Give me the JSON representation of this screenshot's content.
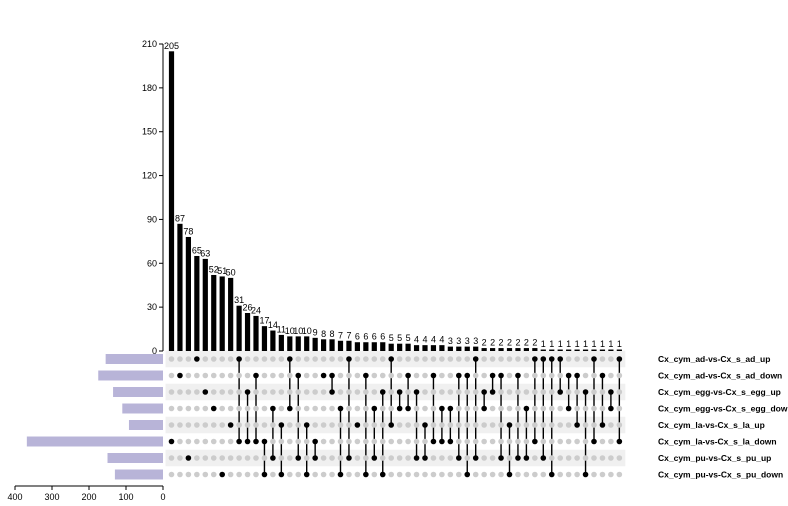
{
  "chart_data": {
    "type": "upset",
    "intersection_axis": {
      "ylim": [
        0,
        210
      ],
      "ticks": [
        0,
        30,
        60,
        90,
        120,
        150,
        180,
        210
      ]
    },
    "set_size_axis": {
      "xlim": [
        0,
        400
      ],
      "ticks": [
        400,
        300,
        200,
        100,
        0
      ],
      "direction": "reversed"
    },
    "sets": [
      "Cx_cym_ad-vs-Cx_s_ad_up",
      "Cx_cym_ad-vs-Cx_s_ad_down",
      "Cx_cym_egg-vs-Cx_s_egg_up",
      "Cx_cym_egg-vs-Cx_s_egg_down",
      "Cx_cym_la-vs-Cx_s_la_up",
      "Cx_cym_la-vs-Cx_s_la_down",
      "Cx_cym_pu-vs-Cx_s_pu_up",
      "Cx_cym_pu-vs-Cx_s_pu_down"
    ],
    "set_sizes": [
      155,
      175,
      135,
      110,
      92,
      368,
      150,
      130
    ],
    "intersections": [
      {
        "size": 205,
        "sets": [
          5
        ]
      },
      {
        "size": 87,
        "sets": [
          1
        ]
      },
      {
        "size": 78,
        "sets": [
          6
        ]
      },
      {
        "size": 65,
        "sets": [
          0
        ]
      },
      {
        "size": 63,
        "sets": [
          2
        ]
      },
      {
        "size": 52,
        "sets": [
          3
        ]
      },
      {
        "size": 51,
        "sets": [
          7
        ]
      },
      {
        "size": 50,
        "sets": [
          4
        ]
      },
      {
        "size": 31,
        "sets": [
          0,
          5
        ]
      },
      {
        "size": 26,
        "sets": [
          2,
          5
        ]
      },
      {
        "size": 24,
        "sets": [
          1,
          5
        ]
      },
      {
        "size": 17,
        "sets": [
          5,
          7
        ]
      },
      {
        "size": 14,
        "sets": [
          3,
          6
        ]
      },
      {
        "size": 11,
        "sets": [
          4,
          7
        ]
      },
      {
        "size": 10,
        "sets": [
          0,
          3
        ]
      },
      {
        "size": 10,
        "sets": [
          1,
          6
        ]
      },
      {
        "size": 10,
        "sets": [
          4,
          7
        ]
      },
      {
        "size": 9,
        "sets": [
          5,
          6
        ]
      },
      {
        "size": 8,
        "sets": [
          1
        ]
      },
      {
        "size": 8,
        "sets": [
          1,
          2
        ]
      },
      {
        "size": 7,
        "sets": [
          3,
          7
        ]
      },
      {
        "size": 7,
        "sets": [
          0,
          6
        ]
      },
      {
        "size": 6,
        "sets": [
          4
        ]
      },
      {
        "size": 6,
        "sets": [
          1,
          7
        ]
      },
      {
        "size": 6,
        "sets": [
          3,
          6
        ]
      },
      {
        "size": 6,
        "sets": [
          2,
          7
        ]
      },
      {
        "size": 5,
        "sets": [
          0,
          4
        ]
      },
      {
        "size": 5,
        "sets": [
          2,
          3
        ]
      },
      {
        "size": 5,
        "sets": [
          1,
          3
        ]
      },
      {
        "size": 4,
        "sets": [
          2,
          6
        ]
      },
      {
        "size": 4,
        "sets": [
          4,
          6
        ]
      },
      {
        "size": 4,
        "sets": [
          1,
          5
        ]
      },
      {
        "size": 4,
        "sets": [
          3,
          5
        ]
      },
      {
        "size": 3,
        "sets": [
          3,
          5
        ]
      },
      {
        "size": 3,
        "sets": [
          1,
          6
        ]
      },
      {
        "size": 3,
        "sets": [
          1,
          7
        ]
      },
      {
        "size": 3,
        "sets": [
          0,
          6
        ]
      },
      {
        "size": 2,
        "sets": [
          2,
          3
        ]
      },
      {
        "size": 2,
        "sets": [
          1,
          2
        ]
      },
      {
        "size": 2,
        "sets": [
          1,
          6
        ]
      },
      {
        "size": 2,
        "sets": [
          4,
          7
        ]
      },
      {
        "size": 2,
        "sets": [
          1,
          6
        ]
      },
      {
        "size": 2,
        "sets": [
          3,
          6
        ]
      },
      {
        "size": 2,
        "sets": [
          0,
          5
        ]
      },
      {
        "size": 1,
        "sets": [
          0,
          6
        ]
      },
      {
        "size": 1,
        "sets": [
          0,
          7
        ]
      },
      {
        "size": 1,
        "sets": [
          0,
          2
        ]
      },
      {
        "size": 1,
        "sets": [
          1,
          3
        ]
      },
      {
        "size": 1,
        "sets": [
          1,
          4
        ]
      },
      {
        "size": 1,
        "sets": [
          2,
          7
        ]
      },
      {
        "size": 1,
        "sets": [
          0,
          5
        ]
      },
      {
        "size": 1,
        "sets": [
          1,
          4
        ]
      },
      {
        "size": 1,
        "sets": [
          2,
          3
        ]
      },
      {
        "size": 1,
        "sets": [
          0,
          5
        ]
      }
    ],
    "colors": {
      "bar": "#000000",
      "set_bar": "#b8b4d8",
      "dot_active": "#000000",
      "dot_inactive": "#cccccc",
      "stripe": "#f0f0f0"
    }
  }
}
